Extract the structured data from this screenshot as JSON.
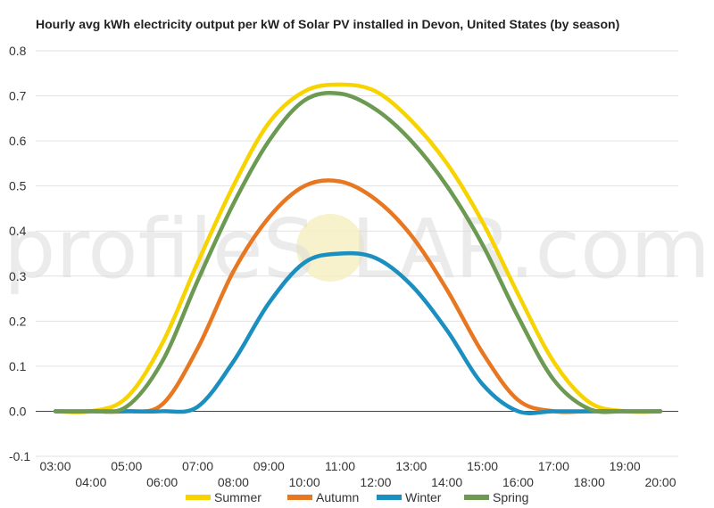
{
  "chart_data": {
    "type": "line",
    "title": "Hourly avg kWh electricity output per kW of Solar PV installed in Devon, United States (by season)",
    "xlabel": "",
    "ylabel": "",
    "x": [
      "03:00",
      "04:00",
      "05:00",
      "06:00",
      "07:00",
      "08:00",
      "09:00",
      "10:00",
      "11:00",
      "12:00",
      "13:00",
      "14:00",
      "15:00",
      "16:00",
      "17:00",
      "18:00",
      "19:00",
      "20:00"
    ],
    "ylim": [
      -0.1,
      0.8
    ],
    "yticks": [
      "0.8",
      "0.7",
      "0.6",
      "0.5",
      "0.4",
      "0.3",
      "0.2",
      "0.1",
      "0.0",
      "-0.1"
    ],
    "grid": true,
    "legend_position": "bottom",
    "series": [
      {
        "name": "Summer",
        "color": "#f7d300",
        "values": [
          0,
          0,
          0.03,
          0.15,
          0.33,
          0.5,
          0.64,
          0.71,
          0.725,
          0.71,
          0.645,
          0.55,
          0.42,
          0.26,
          0.11,
          0.02,
          0,
          0
        ]
      },
      {
        "name": "Autumn",
        "color": "#e87722",
        "values": [
          0,
          0,
          0,
          0.015,
          0.14,
          0.31,
          0.43,
          0.5,
          0.51,
          0.47,
          0.39,
          0.27,
          0.13,
          0.025,
          0,
          0,
          0,
          0
        ]
      },
      {
        "name": "Winter",
        "color": "#1a8fc0",
        "values": [
          0,
          0,
          0,
          0,
          0.01,
          0.11,
          0.24,
          0.33,
          0.35,
          0.34,
          0.28,
          0.18,
          0.06,
          0,
          0,
          0,
          0,
          0
        ]
      },
      {
        "name": "Spring",
        "color": "#6c9a52",
        "values": [
          0,
          0,
          0.01,
          0.11,
          0.29,
          0.46,
          0.6,
          0.69,
          0.705,
          0.67,
          0.6,
          0.5,
          0.37,
          0.21,
          0.07,
          0.005,
          0,
          0
        ]
      }
    ]
  },
  "watermark": {
    "left": "profileS",
    "right": "LAR.com"
  }
}
